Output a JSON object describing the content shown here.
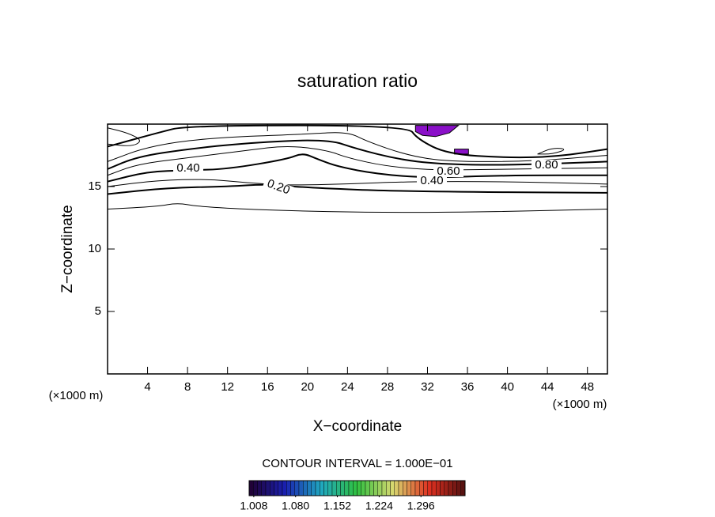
{
  "chart_data": {
    "type": "contour",
    "title": "saturation ratio",
    "x_label": "X−coordinate",
    "y_label": "Z−coordinate",
    "x_unit": "(×1000 m)",
    "y_unit": "(×1000 m)",
    "xlim": [
      0,
      50
    ],
    "ylim": [
      0,
      20
    ],
    "xticks": [
      4,
      8,
      12,
      16,
      20,
      24,
      28,
      32,
      36,
      40,
      44,
      48
    ],
    "yticks": [
      5,
      10,
      15
    ],
    "line_color": "#000000",
    "contours": [
      {
        "level": 0.1,
        "x": [
          0,
          5,
          7,
          9,
          16,
          28,
          40,
          50
        ],
        "y": [
          13.2,
          13.4,
          13.7,
          13.4,
          13.1,
          12.9,
          13.0,
          13.2
        ]
      },
      {
        "level": 0.2,
        "x": [
          0,
          6,
          12,
          16,
          20,
          30,
          50
        ],
        "y": [
          14.4,
          14.9,
          15.0,
          15.2,
          14.9,
          14.6,
          14.5
        ]
      },
      {
        "level": 0.3,
        "x": [
          0,
          5,
          10,
          14,
          18,
          24,
          30,
          40,
          50
        ],
        "y": [
          15.0,
          15.5,
          15.6,
          15.3,
          15.1,
          15.2,
          15.4,
          15.4,
          15.2
        ]
      },
      {
        "level": 0.4,
        "x": [
          0,
          4,
          8,
          12,
          18,
          19.5,
          21,
          23,
          27,
          32,
          40,
          50
        ],
        "y": [
          15.4,
          16.2,
          16.3,
          16.4,
          17.2,
          17.7,
          17.2,
          16.6,
          16.0,
          15.7,
          15.9,
          15.9
        ]
      },
      {
        "level": 0.5,
        "x": [
          0,
          3,
          8,
          14,
          18,
          22,
          24,
          28,
          33,
          40,
          50
        ],
        "y": [
          15.9,
          16.8,
          17.3,
          17.9,
          18.3,
          17.9,
          17.3,
          16.6,
          16.3,
          16.4,
          16.5
        ]
      },
      {
        "level": 0.6,
        "x": [
          0,
          3,
          8,
          14,
          22,
          25,
          29,
          33,
          40,
          50
        ],
        "y": [
          16.4,
          17.4,
          18.0,
          18.5,
          18.8,
          18.0,
          17.2,
          16.8,
          16.7,
          17.0
        ]
      },
      {
        "level": 0.7,
        "x": [
          0,
          4,
          10,
          20,
          24,
          26,
          30,
          34,
          42,
          50
        ],
        "y": [
          17.0,
          18.2,
          18.9,
          19.2,
          19.4,
          18.6,
          17.5,
          17.0,
          17.0,
          17.5
        ]
      },
      {
        "level": 0.8,
        "x": [
          0,
          5,
          8,
          30,
          31,
          34,
          40,
          45,
          50
        ],
        "y": [
          18.2,
          19.3,
          19.9,
          19.9,
          18.8,
          17.6,
          17.3,
          17.4,
          18.0
        ]
      },
      {
        "level": 0.9,
        "x": [
          0,
          2,
          3.5,
          2.5,
          0
        ],
        "y": [
          19.7,
          19.3,
          18.7,
          18.2,
          18.4
        ]
      },
      {
        "level": 0.9,
        "x": [
          43,
          44.5,
          46,
          44.5,
          43
        ],
        "y": [
          17.6,
          18.1,
          18.0,
          17.6,
          17.6
        ]
      }
    ],
    "shade_color": "#8a10c8",
    "shaded_regions": [
      {
        "x": [
          30.8,
          35.1,
          34.2,
          32.8,
          31.5,
          30.8
        ],
        "y": [
          19.9,
          19.9,
          19.3,
          19.0,
          19.1,
          19.4
        ]
      },
      {
        "x": [
          34.7,
          36.1,
          36.1,
          34.7
        ],
        "y": [
          18.0,
          18.0,
          17.6,
          17.6
        ]
      }
    ],
    "contour_labels": [
      {
        "value": 0.4,
        "label": "0.40"
      },
      {
        "value": 0.2,
        "label": "0.20"
      },
      {
        "value": 0.6,
        "label": "0.60"
      },
      {
        "value": 0.4,
        "label": "0.40"
      },
      {
        "value": 0.8,
        "label": "0.80"
      }
    ],
    "contour_interval_note": "CONTOUR INTERVAL = 1.000E−01",
    "colorbar": {
      "lim": [
        1.0,
        1.372
      ],
      "colors": [
        "#200030",
        "#1a20b0",
        "#20a8c0",
        "#30c040",
        "#d8d870",
        "#e03020",
        "#501010"
      ],
      "ticks": [
        {
          "value": 1.008,
          "label": "1.008"
        },
        {
          "value": 1.08,
          "label": "1.080"
        },
        {
          "value": 1.152,
          "label": "1.152"
        },
        {
          "value": 1.224,
          "label": "1.224"
        },
        {
          "value": 1.296,
          "label": "1.296"
        }
      ]
    }
  }
}
